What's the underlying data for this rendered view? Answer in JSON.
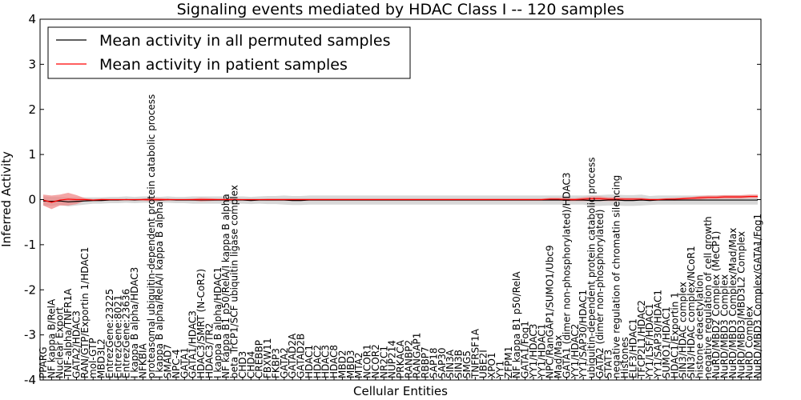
{
  "chart_data": {
    "type": "line",
    "title": "Signaling events mediated by HDAC Class I -- 120 samples",
    "xlabel": "Cellular Entities",
    "ylabel": "Inferred Activity",
    "ylim": [
      -4,
      4
    ],
    "yticks": [
      -4,
      -3,
      -2,
      -1,
      0,
      1,
      2,
      3,
      4
    ],
    "grid": false,
    "legend_position": "top-left",
    "categories": [
      "PPARG",
      "NF kappa B/RelA",
      "Nuclear Export",
      "TNF-alpha/TNFR1A",
      "GATA2/HDAC3",
      "RAN/GTP/Exportin 1/HDAC1",
      "mol-GTP",
      "MBD3L2",
      "EntrezGene:23225",
      "EntrezGene:8021",
      "EntrezGene:23636",
      "I kappa B alpha/HDAC3",
      "NFKBIA",
      "proteasomal ubiquitin-dependent protein catabolic process",
      "I kappa B alpha/RelA/I kappa B alpha",
      "SMAD7",
      "NPC-4",
      "GATA1",
      "GATA1/HDAC3",
      "HDAC3/SMRT (N-CoR2)",
      "HDAC3/TR2",
      "I kappa B alpha/HDAC1",
      "NF kappa B1 p50/RelA/I kappa B alpha",
      "beta TrCP1/SCF ubiquitin ligase complex",
      "CHD3",
      "CHD4",
      "CREBBP",
      "FBXW11",
      "FKBP3",
      "GATA2",
      "GATAD2A",
      "GATAD2B",
      "HDAC1",
      "HDAC2",
      "HDAC3",
      "HDAC8",
      "MBD2",
      "MBD3",
      "MTA2",
      "NCOR1",
      "NCOR2",
      "NR2C1",
      "NUP214",
      "PRKACA",
      "RANBP2",
      "RANGAP1",
      "RBBP7",
      "SAP18",
      "SAP30",
      "SIN3A",
      "SIN3B",
      "SMG5",
      "TNFRSF1A",
      "UBE2I",
      "XPO1",
      "YY1",
      "ZFPM1",
      "NF kappa B1 p50/RelA",
      "GATA1/Fog1",
      "YY1/HDAC3",
      "YY1/HDAC1",
      "NPC/RanGAP1/SUMO1/Ubc9",
      "Mad/Max",
      "GATA1 (dimer non-phosphorylated)/HDAC3",
      "YY1/HDAC2",
      "YY1/SAP30/HDAC1",
      "ubiquitin-dependent protein catabolic process",
      "GATA2 (dimer non-phosphorylated)",
      "STAT3",
      "negative regulation of chromatin silencing",
      "Histones",
      "ELF3/HDAC1",
      "TFCP2L1/HDAC2",
      "YY1/LSF/HDAC1",
      "YY1/SAP30/HDAC1",
      "SUMO1/HDAC1",
      "HDAC1/Exportin 1",
      "SIN3/HDAC complex",
      "SIN3/HDAC complex/NCoR1",
      "histone deacetylation",
      "negative regulation of cell growth",
      "NuRD/MBD2 Complex (MeCP1)",
      "NuRD/MBD3 Complex",
      "NuRD/MBD3 Complex/Mad/Max",
      "NuRD/MBD3/MBD3L2 Complex",
      "NuRD Complex",
      "NuRD/MBD3 Complex/GATA1/Fog1"
    ],
    "series": [
      {
        "name": "Mean activity in all permuted samples",
        "color": "#000000",
        "band_color": "#b8b8b8",
        "values": [
          -0.03,
          -0.04,
          -0.03,
          -0.05,
          -0.04,
          -0.03,
          -0.02,
          -0.02,
          -0.01,
          -0.01,
          0.0,
          -0.01,
          0.0,
          0.0,
          -0.01,
          0.0,
          -0.01,
          -0.01,
          -0.01,
          -0.01,
          -0.01,
          -0.01,
          -0.01,
          -0.01,
          -0.01,
          -0.02,
          -0.01,
          -0.01,
          -0.01,
          -0.01,
          -0.02,
          -0.02,
          -0.01,
          -0.01,
          -0.01,
          -0.01,
          -0.01,
          -0.01,
          -0.01,
          -0.01,
          -0.01,
          -0.01,
          -0.01,
          -0.01,
          -0.01,
          -0.01,
          -0.01,
          -0.01,
          -0.01,
          -0.01,
          -0.01,
          -0.01,
          -0.01,
          -0.01,
          -0.01,
          -0.01,
          -0.01,
          -0.01,
          -0.01,
          -0.01,
          -0.01,
          -0.01,
          -0.01,
          -0.01,
          -0.01,
          -0.01,
          -0.02,
          -0.02,
          -0.01,
          -0.01,
          -0.02,
          -0.02,
          -0.01,
          -0.02,
          -0.01,
          -0.01,
          -0.01,
          -0.01,
          -0.01,
          -0.01,
          -0.01,
          -0.01,
          -0.01,
          -0.01,
          -0.01,
          -0.01,
          -0.01
        ],
        "band": [
          0.1,
          0.1,
          0.09,
          0.1,
          0.09,
          0.08,
          0.07,
          0.07,
          0.07,
          0.07,
          0.07,
          0.07,
          0.07,
          0.07,
          0.07,
          0.07,
          0.07,
          0.07,
          0.08,
          0.08,
          0.08,
          0.08,
          0.08,
          0.08,
          0.08,
          0.08,
          0.08,
          0.09,
          0.09,
          0.1,
          0.1,
          0.1,
          0.1,
          0.1,
          0.1,
          0.1,
          0.1,
          0.1,
          0.1,
          0.1,
          0.1,
          0.1,
          0.1,
          0.1,
          0.1,
          0.1,
          0.1,
          0.1,
          0.1,
          0.1,
          0.1,
          0.1,
          0.1,
          0.1,
          0.1,
          0.1,
          0.1,
          0.1,
          0.1,
          0.1,
          0.1,
          0.1,
          0.1,
          0.1,
          0.1,
          0.1,
          0.12,
          0.12,
          0.12,
          0.12,
          0.12,
          0.12,
          0.12,
          0.1,
          0.1,
          0.1,
          0.1,
          0.1,
          0.1,
          0.1,
          0.1,
          0.1,
          0.1,
          0.1,
          0.1,
          0.1,
          0.1
        ]
      },
      {
        "name": "Mean activity in patient samples",
        "color": "#ff0000",
        "band_color": "#f08080",
        "values": [
          -0.01,
          -0.06,
          -0.01,
          0.01,
          0.0,
          0.0,
          -0.01,
          0.0,
          0.0,
          0.0,
          0.0,
          0.0,
          0.0,
          0.0,
          0.0,
          0.0,
          0.0,
          0.0,
          0.0,
          0.0,
          0.0,
          0.0,
          0.0,
          0.0,
          0.0,
          0.0,
          0.0,
          0.0,
          0.0,
          0.0,
          0.0,
          0.0,
          0.0,
          0.0,
          0.0,
          0.0,
          0.0,
          0.0,
          0.0,
          0.0,
          0.0,
          0.0,
          0.0,
          0.0,
          0.0,
          0.0,
          0.0,
          0.0,
          0.0,
          0.0,
          0.0,
          0.0,
          0.0,
          0.0,
          0.0,
          0.0,
          0.0,
          0.0,
          0.0,
          0.0,
          0.0,
          0.01,
          0.01,
          0.0,
          0.0,
          0.01,
          0.02,
          0.02,
          0.01,
          0.01,
          0.01,
          0.01,
          0.01,
          0.0,
          0.0,
          0.01,
          0.01,
          0.02,
          0.03,
          0.04,
          0.05,
          0.05,
          0.06,
          0.06,
          0.06,
          0.07,
          0.07
        ],
        "band": [
          0.12,
          0.15,
          0.12,
          0.14,
          0.1,
          0.03,
          0.02,
          0.02,
          0.01,
          0.01,
          0.01,
          0.01,
          0.02,
          0.04,
          0.03,
          0.02,
          0.01,
          0.01,
          0.02,
          0.04,
          0.03,
          0.02,
          0.02,
          0.02,
          0.01,
          0.01,
          0.01,
          0.02,
          0.02,
          0.02,
          0.02,
          0.02,
          0.02,
          0.02,
          0.02,
          0.02,
          0.02,
          0.02,
          0.02,
          0.02,
          0.02,
          0.02,
          0.02,
          0.02,
          0.02,
          0.02,
          0.02,
          0.02,
          0.02,
          0.02,
          0.02,
          0.02,
          0.02,
          0.02,
          0.02,
          0.02,
          0.02,
          0.02,
          0.02,
          0.02,
          0.02,
          0.03,
          0.03,
          0.03,
          0.03,
          0.04,
          0.05,
          0.05,
          0.04,
          0.04,
          0.03,
          0.03,
          0.03,
          0.02,
          0.02,
          0.02,
          0.03,
          0.03,
          0.03,
          0.04,
          0.04,
          0.04,
          0.04,
          0.04,
          0.04,
          0.04,
          0.04
        ]
      }
    ]
  }
}
